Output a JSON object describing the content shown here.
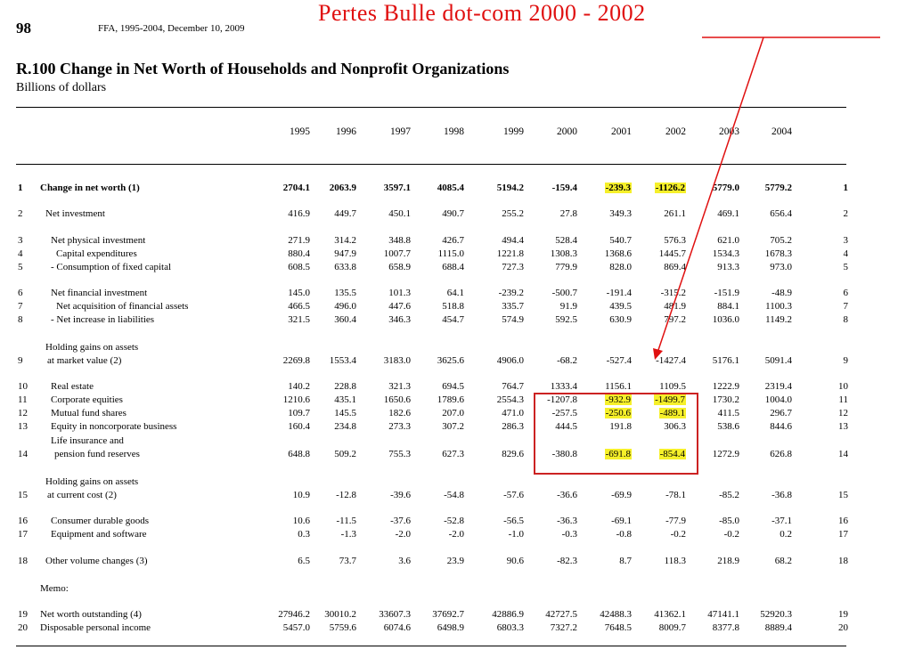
{
  "page_number": "98",
  "header": "FFA, 1995-2004, December 10, 2009",
  "annotation": "Pertes Bulle dot-com 2000  -  2002",
  "title": "R.100 Change in Net Worth of Households and Nonprofit Organizations",
  "subtitle": "Billions of dollars",
  "years": [
    "1995",
    "1996",
    "1997",
    "1998",
    "1999",
    "2000",
    "2001",
    "2002",
    "2003",
    "2004"
  ],
  "colors": {
    "annotation": "#e01010",
    "highlight": "#f6f02a",
    "box": "#cc2222"
  },
  "rows": [
    {
      "n": "1",
      "label": "Change in net worth (1)",
      "bold": true,
      "values": [
        "2704.1",
        "2063.9",
        "3597.1",
        "4085.4",
        "5194.2",
        "-159.4",
        "-239.3",
        "-1126.2",
        "5779.0",
        "5779.2"
      ]
    },
    {
      "n": "2",
      "label": "Net investment",
      "values": [
        "416.9",
        "449.7",
        "450.1",
        "490.7",
        "255.2",
        "27.8",
        "349.3",
        "261.1",
        "469.1",
        "656.4"
      ]
    },
    {
      "n": "3",
      "label": "Net physical investment",
      "values": [
        "271.9",
        "314.2",
        "348.8",
        "426.7",
        "494.4",
        "528.4",
        "540.7",
        "576.3",
        "621.0",
        "705.2"
      ]
    },
    {
      "n": "4",
      "label": "Capital expenditures",
      "values": [
        "880.4",
        "947.9",
        "1007.7",
        "1115.0",
        "1221.8",
        "1308.3",
        "1368.6",
        "1445.7",
        "1534.3",
        "1678.3"
      ]
    },
    {
      "n": "5",
      "label": "- Consumption of fixed capital",
      "values": [
        "608.5",
        "633.8",
        "658.9",
        "688.4",
        "727.3",
        "779.9",
        "828.0",
        "869.4",
        "913.3",
        "973.0"
      ]
    },
    {
      "n": "6",
      "label": "Net financial investment",
      "values": [
        "145.0",
        "135.5",
        "101.3",
        "64.1",
        "-239.2",
        "-500.7",
        "-191.4",
        "-315.2",
        "-151.9",
        "-48.9"
      ]
    },
    {
      "n": "7",
      "label": "Net acquisition of financial assets",
      "values": [
        "466.5",
        "496.0",
        "447.6",
        "518.8",
        "335.7",
        "91.9",
        "439.5",
        "481.9",
        "884.1",
        "1100.3"
      ]
    },
    {
      "n": "8",
      "label": "- Net increase in liabilities",
      "values": [
        "321.5",
        "360.4",
        "346.3",
        "454.7",
        "574.9",
        "592.5",
        "630.9",
        "797.2",
        "1036.0",
        "1149.2"
      ]
    },
    {
      "n": "",
      "label": "Holding gains on assets",
      "values": []
    },
    {
      "n": "9",
      "label": "at market value (2)",
      "values": [
        "2269.8",
        "1553.4",
        "3183.0",
        "3625.6",
        "4906.0",
        "-68.2",
        "-527.4",
        "-1427.4",
        "5176.1",
        "5091.4"
      ]
    },
    {
      "n": "10",
      "label": "Real estate",
      "values": [
        "140.2",
        "228.8",
        "321.3",
        "694.5",
        "764.7",
        "1333.4",
        "1156.1",
        "1109.5",
        "1222.9",
        "2319.4"
      ]
    },
    {
      "n": "11",
      "label": "Corporate equities",
      "values": [
        "1210.6",
        "435.1",
        "1650.6",
        "1789.6",
        "2554.3",
        "-1207.8",
        "-932.9",
        "-1499.7",
        "1730.2",
        "1004.0"
      ]
    },
    {
      "n": "12",
      "label": "Mutual fund shares",
      "values": [
        "109.7",
        "145.5",
        "182.6",
        "207.0",
        "471.0",
        "-257.5",
        "-250.6",
        "-489.1",
        "411.5",
        "296.7"
      ]
    },
    {
      "n": "13",
      "label": "Equity in noncorporate business",
      "values": [
        "160.4",
        "234.8",
        "273.3",
        "307.2",
        "286.3",
        "444.5",
        "191.8",
        "306.3",
        "538.6",
        "844.6"
      ]
    },
    {
      "n": "",
      "label": "Life insurance and",
      "values": []
    },
    {
      "n": "14",
      "label": "pension fund reserves",
      "values": [
        "648.8",
        "509.2",
        "755.3",
        "627.3",
        "829.6",
        "-380.8",
        "-691.8",
        "-854.4",
        "1272.9",
        "626.8"
      ]
    },
    {
      "n": "",
      "label": "Holding gains on assets",
      "values": []
    },
    {
      "n": "15",
      "label": "at current cost (2)",
      "values": [
        "10.9",
        "-12.8",
        "-39.6",
        "-54.8",
        "-57.6",
        "-36.6",
        "-69.9",
        "-78.1",
        "-85.2",
        "-36.8"
      ]
    },
    {
      "n": "16",
      "label": "Consumer durable goods",
      "values": [
        "10.6",
        "-11.5",
        "-37.6",
        "-52.8",
        "-56.5",
        "-36.3",
        "-69.1",
        "-77.9",
        "-85.0",
        "-37.1"
      ]
    },
    {
      "n": "17",
      "label": "Equipment and software",
      "values": [
        "0.3",
        "-1.3",
        "-2.0",
        "-2.0",
        "-1.0",
        "-0.3",
        "-0.8",
        "-0.2",
        "-0.2",
        "0.2"
      ]
    },
    {
      "n": "18",
      "label": "Other volume changes (3)",
      "values": [
        "6.5",
        "73.7",
        "3.6",
        "23.9",
        "90.6",
        "-82.3",
        "8.7",
        "118.3",
        "218.9",
        "68.2"
      ]
    },
    {
      "n": "",
      "label": "Memo:",
      "values": []
    },
    {
      "n": "19",
      "label": "Net worth outstanding (4)",
      "values": [
        "27946.2",
        "30010.2",
        "33607.3",
        "37692.7",
        "42886.9",
        "42727.5",
        "42488.3",
        "41362.1",
        "47141.1",
        "52920.3"
      ]
    },
    {
      "n": "20",
      "label": "Disposable personal income",
      "values": [
        "5457.0",
        "5759.6",
        "6074.6",
        "6498.9",
        "6803.3",
        "7327.2",
        "7648.5",
        "8009.7",
        "8377.8",
        "8889.4"
      ]
    }
  ]
}
